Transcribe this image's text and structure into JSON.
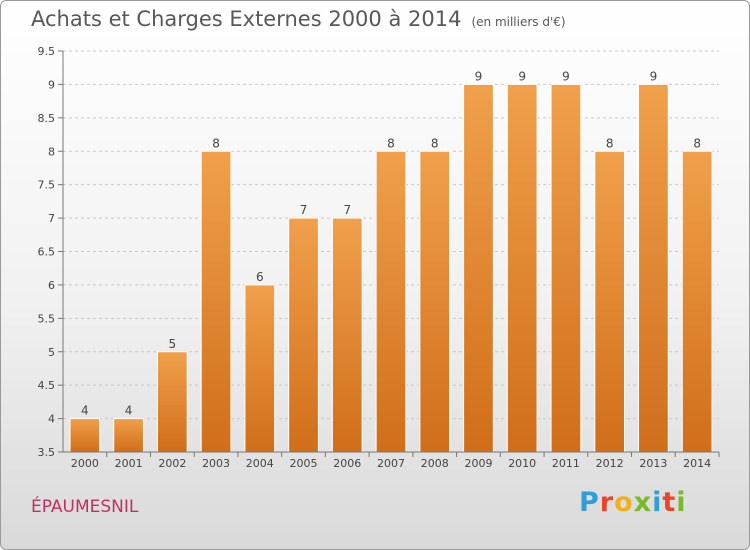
{
  "title": "Achats et Charges Externes 2000 à 2014",
  "subtitle": "(en milliers d'€)",
  "commune": "ÉPAUMESNIL",
  "logo": {
    "letters": [
      "P",
      "r",
      "o",
      "x",
      "i",
      "t",
      "i"
    ],
    "colors": [
      "#2f9fd8",
      "#e8462b",
      "#f0b21c",
      "#7ab929",
      "#2f9fd8",
      "#e8462b",
      "#7ab929"
    ]
  },
  "chart_data": {
    "type": "bar",
    "categories": [
      "2000",
      "2001",
      "2002",
      "2003",
      "2004",
      "2005",
      "2006",
      "2007",
      "2008",
      "2009",
      "2010",
      "2011",
      "2012",
      "2013",
      "2014"
    ],
    "values": [
      4,
      4,
      5,
      8,
      6,
      7,
      7,
      8,
      8,
      9,
      9,
      9,
      8,
      9,
      8
    ],
    "data_labels": [
      "4",
      "4",
      "5",
      "8",
      "6",
      "7",
      "7",
      "8",
      "8",
      "9",
      "9",
      "9",
      "8",
      "9",
      "8"
    ],
    "ylim": [
      3.5,
      9.5
    ],
    "yticks": [
      3.5,
      4,
      4.5,
      5,
      5.5,
      6,
      6.5,
      7,
      7.5,
      8,
      8.5,
      9,
      9.5
    ],
    "ytick_labels": [
      "3.5",
      "4",
      "4.5",
      "5",
      "5.5",
      "6",
      "6.5",
      "7",
      "7.5",
      "8",
      "8.5",
      "9",
      "9.5"
    ],
    "grid": "horizontal dashed",
    "bar_color": "#f0a04b",
    "bar_color_dark": "#d06e1a"
  }
}
